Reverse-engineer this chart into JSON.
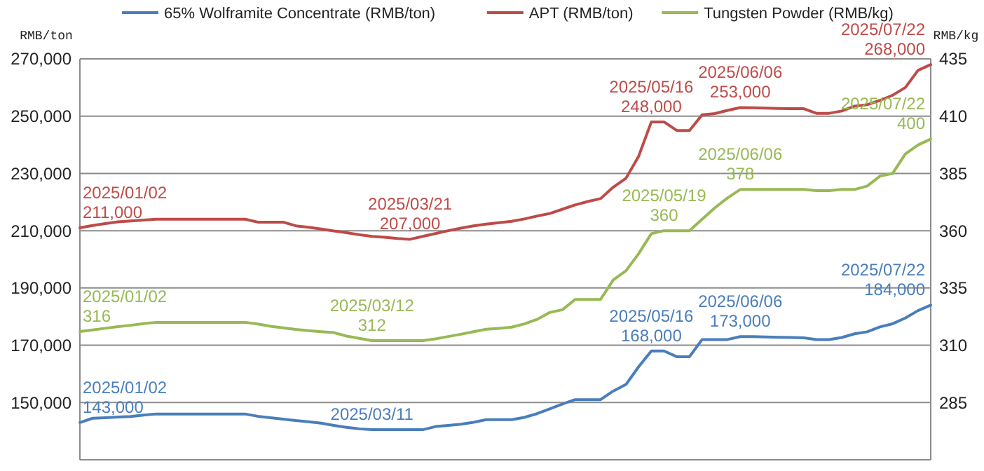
{
  "chart_data": {
    "type": "line",
    "ylabel": "RMB/ton",
    "y2label": "RMB/kg",
    "legend": "top",
    "grid": "y",
    "tick_labels": "y",
    "marker": "none",
    "line_style": "solid",
    "categories": [
      null,
      null,
      null,
      null,
      null,
      null,
      null,
      null,
      null,
      null,
      null,
      null,
      null,
      null,
      null,
      null,
      null,
      null,
      null,
      null,
      null,
      null,
      null,
      null,
      null,
      null,
      null,
      null,
      null,
      null,
      null,
      null,
      null,
      null,
      null,
      null,
      null,
      null,
      null,
      null,
      null,
      null,
      null,
      null,
      null,
      null,
      null,
      null,
      null,
      null,
      null,
      null,
      null,
      null,
      null,
      null,
      null,
      null,
      null,
      null,
      null,
      null,
      null,
      null,
      null,
      null,
      null,
      null
    ],
    "ylim": [
      130000,
      270000
    ],
    "yticks": [
      {
        "value": 150000,
        "label": "150,000"
      },
      {
        "value": 170000,
        "label": "170,000"
      },
      {
        "value": 190000,
        "label": "190,000"
      },
      {
        "value": 210000,
        "label": "210,000"
      },
      {
        "value": 230000,
        "label": "230,000"
      },
      {
        "value": 250000,
        "label": "250,000"
      },
      {
        "value": 270000,
        "label": "270,000"
      }
    ],
    "y2lim": [
      260,
      435
    ],
    "y2ticks": [
      285,
      310,
      335,
      360,
      385,
      410,
      435
    ],
    "series": [
      {
        "name": "65% Wolframite Concentrate (RMB/ton)",
        "color": "#4a7ebb",
        "values": [
          143000,
          144500,
          144700,
          144900,
          145100,
          145600,
          146000,
          146000,
          146000,
          146000,
          146000,
          146000,
          146000,
          146000,
          145200,
          144700,
          144200,
          143700,
          143300,
          142800,
          142000,
          141300,
          140800,
          140500,
          140500,
          140500,
          140500,
          140500,
          141600,
          142000,
          142400,
          143100,
          144000,
          144000,
          144000,
          144800,
          146100,
          147800,
          149500,
          151000,
          151000,
          151000,
          154000,
          156300,
          162500,
          168000,
          168000,
          166000,
          166000,
          172000,
          172000,
          172000,
          173000,
          173000,
          172900,
          172800,
          172700,
          172600,
          172000,
          172000,
          172700,
          174000,
          174700,
          176400,
          177500,
          179500,
          182100,
          184000
        ],
        "value_labels": [
          "2025/01/02\n143,000",
          null,
          null,
          null,
          null,
          null,
          null,
          null,
          null,
          null,
          null,
          null,
          null,
          null,
          null,
          null,
          null,
          null,
          null,
          null,
          null,
          null,
          null,
          "2025/03/11",
          null,
          null,
          null,
          null,
          null,
          null,
          null,
          null,
          null,
          null,
          null,
          null,
          null,
          null,
          null,
          null,
          null,
          null,
          null,
          null,
          null,
          "2025/05/16\n168,000",
          null,
          null,
          null,
          null,
          null,
          null,
          "2025/06/06\n173,000",
          null,
          null,
          null,
          null,
          null,
          null,
          null,
          null,
          null,
          null,
          null,
          null,
          null,
          null,
          "2025/07/22\n184,000"
        ]
      },
      {
        "name": "APT (RMB/ton)",
        "color": "#be4b48",
        "values": [
          211000,
          211800,
          212500,
          213100,
          213400,
          213700,
          214000,
          214000,
          214000,
          214000,
          214000,
          214000,
          214000,
          214000,
          213000,
          213000,
          213000,
          211700,
          211200,
          210600,
          209900,
          209300,
          208600,
          208000,
          207700,
          207300,
          207000,
          208000,
          209000,
          210000,
          210900,
          211700,
          212300,
          212800,
          213300,
          214100,
          215100,
          216000,
          217500,
          219000,
          220200,
          221200,
          225200,
          228300,
          236000,
          248000,
          248000,
          245000,
          245000,
          250500,
          250900,
          252000,
          253000,
          252900,
          252800,
          252700,
          252600,
          252600,
          251000,
          251000,
          251800,
          253500,
          254000,
          255500,
          257300,
          260000,
          266000,
          268000
        ],
        "value_labels": [
          "2025/01/02\n211,000",
          null,
          null,
          null,
          null,
          null,
          null,
          null,
          null,
          null,
          null,
          null,
          null,
          null,
          null,
          null,
          null,
          null,
          null,
          null,
          null,
          null,
          null,
          null,
          null,
          null,
          "2025/03/21\n207,000",
          null,
          null,
          null,
          null,
          null,
          null,
          null,
          null,
          null,
          null,
          null,
          null,
          null,
          null,
          null,
          null,
          null,
          null,
          "2025/05/16\n248,000",
          null,
          null,
          null,
          null,
          null,
          null,
          "2025/06/06\n253,000",
          null,
          null,
          null,
          null,
          null,
          null,
          null,
          null,
          null,
          null,
          null,
          null,
          null,
          null,
          "2025/07/22\n268,000"
        ]
      },
      {
        "name": "Tungsten Powder (RMB/kg)",
        "color": "#98b954",
        "axis": "y2",
        "values": [
          316,
          316.7,
          317.4,
          318.1,
          318.7,
          319.4,
          320,
          320,
          320,
          320,
          320,
          320,
          320,
          320,
          319.3,
          318.3,
          317.6,
          316.9,
          316.4,
          315.9,
          315.5,
          314,
          313,
          312,
          312,
          312,
          312,
          312,
          312.8,
          313.8,
          314.8,
          315.9,
          317,
          317.4,
          317.9,
          319.3,
          321.3,
          324.3,
          325.5,
          330,
          330,
          330,
          338.5,
          342.5,
          350,
          358.7,
          360,
          360,
          360,
          365,
          370,
          374.3,
          378,
          378,
          378,
          378,
          378,
          378,
          377.5,
          377.5,
          378,
          378,
          379.5,
          383.8,
          385,
          393.5,
          397.4,
          400
        ],
        "value_labels": [
          "2025/01/02\n316",
          null,
          null,
          null,
          null,
          null,
          null,
          null,
          null,
          null,
          null,
          null,
          null,
          null,
          null,
          null,
          null,
          null,
          null,
          null,
          null,
          null,
          null,
          "2025/03/12\n312",
          null,
          null,
          null,
          null,
          null,
          null,
          null,
          null,
          null,
          null,
          null,
          null,
          null,
          null,
          null,
          null,
          null,
          null,
          null,
          null,
          null,
          null,
          "2025/05/19\n360",
          null,
          null,
          null,
          null,
          null,
          "2025/06/06\n378",
          null,
          null,
          null,
          null,
          null,
          null,
          null,
          null,
          null,
          null,
          null,
          null,
          null,
          null,
          "2025/07/22\n400"
        ]
      }
    ]
  }
}
